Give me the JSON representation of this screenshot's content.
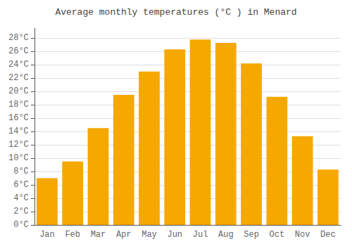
{
  "chart_data": {
    "type": "bar",
    "title": "Average monthly temperatures (°C ) in Menard",
    "categories": [
      "Jan",
      "Feb",
      "Mar",
      "Apr",
      "May",
      "Jun",
      "Jul",
      "Aug",
      "Sep",
      "Oct",
      "Nov",
      "Dec"
    ],
    "values": [
      7.0,
      9.5,
      14.5,
      19.5,
      23.0,
      26.3,
      27.8,
      27.3,
      24.2,
      19.2,
      13.3,
      8.3
    ],
    "color": "#F5A800",
    "ylim": [
      0,
      29.5
    ],
    "yticks": [
      {
        "value": 0,
        "label": "0°C"
      },
      {
        "value": 2,
        "label": "2°C"
      },
      {
        "value": 4,
        "label": "4°C"
      },
      {
        "value": 6,
        "label": "6°C"
      },
      {
        "value": 8,
        "label": "8°C"
      },
      {
        "value": 10,
        "label": "10°C"
      },
      {
        "value": 12,
        "label": "12°C"
      },
      {
        "value": 14,
        "label": "14°C"
      },
      {
        "value": 16,
        "label": "16°C"
      },
      {
        "value": 18,
        "label": "18°C"
      },
      {
        "value": 20,
        "label": "20°C"
      },
      {
        "value": 22,
        "label": "22°C"
      },
      {
        "value": 24,
        "label": "24°C"
      },
      {
        "value": 26,
        "label": "26°C"
      },
      {
        "value": 28,
        "label": "28°C"
      }
    ],
    "grid": true
  }
}
